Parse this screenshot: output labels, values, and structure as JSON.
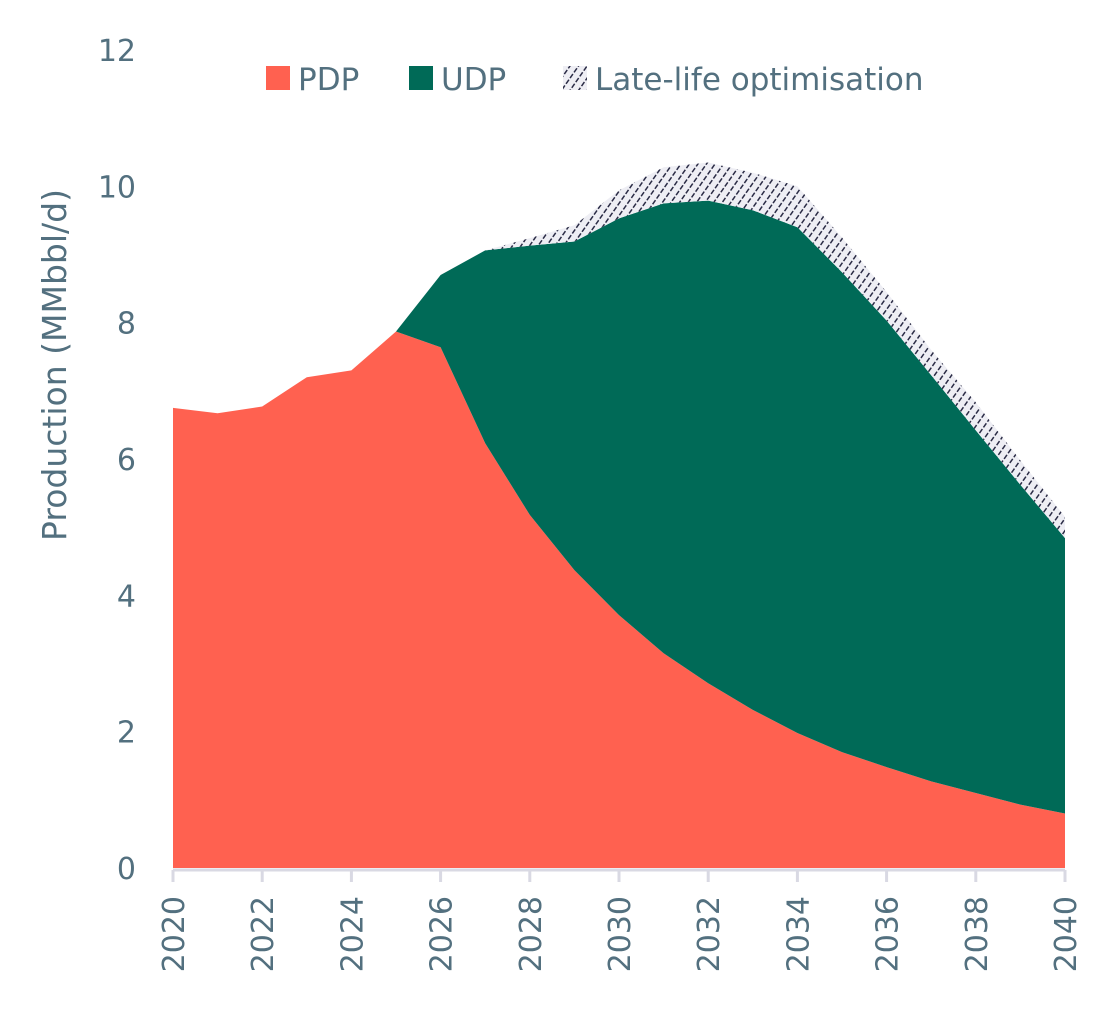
{
  "chart_data": {
    "type": "area",
    "stacked": true,
    "title": "",
    "xlabel": "",
    "ylabel": "Production (MMbbl/d)",
    "ylim": [
      0,
      12
    ],
    "yticks": [
      0,
      2,
      4,
      6,
      8,
      10,
      12
    ],
    "xlim": [
      2020,
      2040
    ],
    "xticks": [
      2020,
      2022,
      2024,
      2026,
      2028,
      2030,
      2032,
      2034,
      2036,
      2038,
      2040
    ],
    "grid": false,
    "legend_position": "top",
    "x": [
      2020,
      2021,
      2022,
      2023,
      2024,
      2025,
      2026,
      2027,
      2028,
      2029,
      2030,
      2031,
      2032,
      2033,
      2034,
      2035,
      2036,
      2037,
      2038,
      2039,
      2040
    ],
    "series": [
      {
        "name": "PDP",
        "color": "#ff6150",
        "pattern": "solid",
        "values": [
          6.75,
          6.67,
          6.77,
          7.2,
          7.3,
          7.87,
          7.64,
          6.23,
          5.18,
          4.37,
          3.71,
          3.15,
          2.71,
          2.32,
          1.98,
          1.7,
          1.48,
          1.27,
          1.1,
          0.93,
          0.8
        ]
      },
      {
        "name": "UDP",
        "color": "#006a57",
        "pattern": "solid",
        "values": [
          0,
          0,
          0,
          0,
          0,
          0,
          1.06,
          2.83,
          3.95,
          4.82,
          5.82,
          6.6,
          7.08,
          7.33,
          7.42,
          7.04,
          6.55,
          5.96,
          5.32,
          4.69,
          4.04
        ]
      },
      {
        "name": "Late-life optimisation",
        "color": "#2a2b45",
        "pattern": "hatch",
        "values": [
          0,
          0,
          0,
          0,
          0,
          0,
          0,
          0,
          0.11,
          0.24,
          0.41,
          0.53,
          0.56,
          0.55,
          0.6,
          0.51,
          0.42,
          0.37,
          0.41,
          0.36,
          0.31
        ]
      }
    ]
  },
  "colors": {
    "text": "#53707f",
    "axis": "#d9d9e3",
    "hatch_bg": "#eeeef4"
  }
}
